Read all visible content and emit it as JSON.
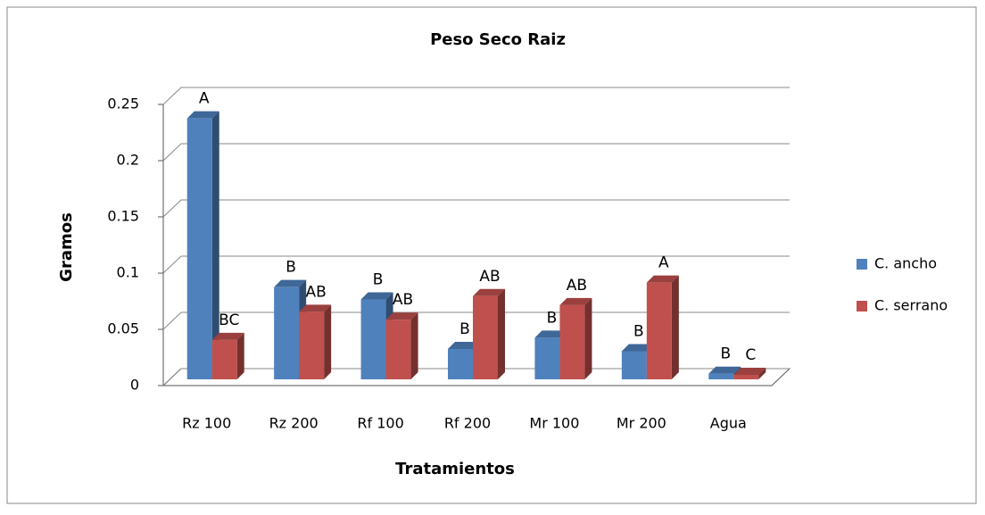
{
  "chart_data": {
    "type": "bar3d",
    "title": "Peso Seco Raiz",
    "x_label": "Tratamientos",
    "y_label": "Gramos",
    "categories": [
      "Rz 100",
      "Rz 200",
      "Rf 100",
      "Rf 200",
      "Mr 100",
      "Mr 200",
      "Agua"
    ],
    "series": [
      {
        "name": "C. ancho",
        "color": "#4f81bd",
        "values": [
          0.232,
          0.082,
          0.071,
          0.027,
          0.037,
          0.025,
          0.005
        ],
        "letters": [
          "A",
          "B",
          "B",
          "B",
          "B",
          "B",
          "B"
        ]
      },
      {
        "name": "C. serrano",
        "color": "#c0504d",
        "values": [
          0.035,
          0.06,
          0.053,
          0.074,
          0.066,
          0.086,
          0.004
        ],
        "letters": [
          "BC",
          "AB",
          "AB",
          "AB",
          "AB",
          "A",
          "C"
        ]
      }
    ],
    "ylim": [
      0,
      0.25
    ],
    "yticks": [
      0,
      0.05,
      0.1,
      0.15,
      0.2,
      0.25
    ],
    "grid": true,
    "legend": "right"
  }
}
